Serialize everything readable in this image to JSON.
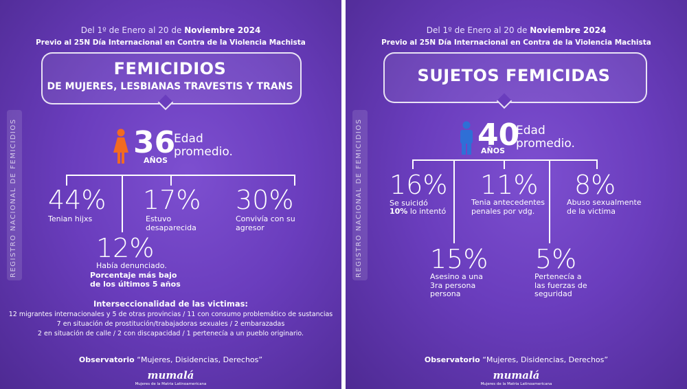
{
  "left": {
    "date_prefix": "Del 1º de Enero al 20 de",
    "date_bold": "Noviembre 2024",
    "previo": "Previo al 25N Día Internacional en Contra de la Violencia Machista",
    "title_line1": "FEMICIDIOS",
    "title_line2": "DE  MUJERES, LESBIANAS TRAVESTIS Y TRANS",
    "side_label": "REGISTRO NACIONAL  DE FEMICIDIOS",
    "age": "36",
    "age_unit": "AÑOS",
    "edad": "Edad promedio.",
    "stats": {
      "s1_pct": "44%",
      "s1_lbl": "Tenian hijxs",
      "s2_pct": "17%",
      "s2_lbl": "Estuvo desaparecida",
      "s3_pct": "30%",
      "s3_lbl": "Convivía con su agresor",
      "s4_pct": "12%",
      "s4_lbl": "Había denunciado.",
      "s4_bold": "Porcentaje más bajo de los últimos 5 años"
    },
    "inter_title": "Interseccionalidad de las victimas:",
    "inter_lines": [
      "12 migrantes internacionales y 5 de otras provincias / 11 con consumo problemático de sustancias",
      "7 en situación de prostitución/trabajadoras sexuales / 2 embarazadas",
      "2 en situación de calle / 2 con discapacidad / 1 pertenecía a un pueblo originario."
    ],
    "obs_bold": "Observatorio",
    "obs_rest": "“Mujeres, Disidencias, Derechos”",
    "logo": "mumalá",
    "logo_sub": "Mujeres de la Matria Latinoamericana"
  },
  "right": {
    "date_prefix": "Del 1º de Enero al 20 de",
    "date_bold": "Noviembre 2024",
    "previo": "Previo al 25N Día Internacional en Contra de la Violencia Machista",
    "title_line1": "SUJETOS FEMICIDAS",
    "side_label": "REGISTRO NACIONAL  DE FEMICIDIOS",
    "age": "40",
    "age_unit": "AÑOS",
    "edad": "Edad promedio.",
    "stats": {
      "s1_pct": "16%",
      "s1_lbl": "Se suicidó",
      "s1_bold": "10%",
      "s1_rest": "lo intentó",
      "s2_pct": "11%",
      "s2_lbl": "Tenia antecedentes penales por vdg.",
      "s3_pct": "8%",
      "s3_lbl": "Abuso sexualmente de la victima",
      "s4_pct": "15%",
      "s4_lbl": "Asesino a una 3ra persona persona",
      "s5_pct": "5%",
      "s5_lbl": "Pertenecía a las fuerzas de seguridad"
    },
    "obs_bold": "Observatorio",
    "obs_rest": "“Mujeres, Disidencias, Derechos”",
    "logo": "mumalá",
    "logo_sub": "Mujeres de la Matria Latinoamericana"
  },
  "colors": {
    "female_icon": "#f26a21",
    "male_icon": "#2f6fd6"
  }
}
